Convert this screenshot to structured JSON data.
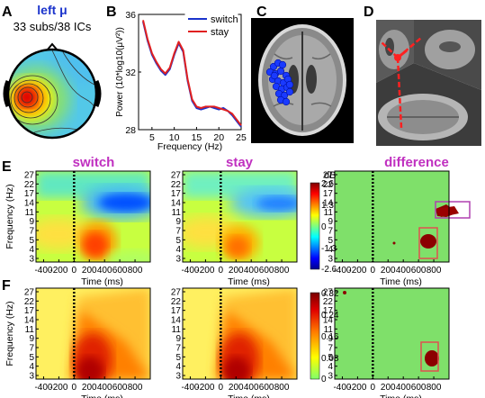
{
  "panels": {
    "A": {
      "letter": "A",
      "title": "left μ",
      "subtitle": "33 subs/38 ICs"
    },
    "B": {
      "letter": "B"
    },
    "C": {
      "letter": "C"
    },
    "D": {
      "letter": "D"
    },
    "E": {
      "letter": "E",
      "titles": [
        "switch",
        "stay",
        "difference"
      ],
      "cbar_unit": "dB",
      "cbar_ticks": [
        "2.6",
        "1.3",
        "0",
        "-1.3",
        "-2.6"
      ]
    },
    "F": {
      "letter": "F",
      "cbar_ticks": [
        "0.32",
        "0.24",
        "0.16",
        "0.08",
        "0"
      ]
    }
  },
  "tf_axes": {
    "ylabel": "Frequency (Hz)",
    "xlabel": "Time (ms)",
    "yticks": [
      "27",
      "22",
      "17",
      "14",
      "11",
      "9",
      "7",
      "5",
      "4",
      "3"
    ],
    "xticks": [
      "-400",
      "-200",
      "0",
      "200",
      "400",
      "600",
      "800"
    ]
  },
  "chart_data": {
    "type": "line",
    "title": "",
    "xlabel": "Frequency (Hz)",
    "ylabel": "Power (10*log10(μV²))",
    "xlim": [
      2,
      25
    ],
    "ylim": [
      28,
      36
    ],
    "xticks": [
      5,
      10,
      15,
      20,
      25
    ],
    "yticks": [
      28,
      32,
      36
    ],
    "legend_position": "top-right",
    "series": [
      {
        "name": "switch",
        "color": "#1a33cc",
        "x": [
          3,
          4,
          5,
          6,
          7,
          8,
          9,
          10,
          11,
          12,
          13,
          14,
          15,
          16,
          17,
          18,
          19,
          20,
          21,
          22,
          23,
          24,
          25
        ],
        "y": [
          35.5,
          34.2,
          33.2,
          32.6,
          32.1,
          31.8,
          32.2,
          33.2,
          34.0,
          33.4,
          31.4,
          30.0,
          29.5,
          29.4,
          29.5,
          29.6,
          29.5,
          29.4,
          29.5,
          29.3,
          29.0,
          28.6,
          28.2
        ]
      },
      {
        "name": "stay",
        "color": "#e02020",
        "x": [
          3,
          4,
          5,
          6,
          7,
          8,
          9,
          10,
          11,
          12,
          13,
          14,
          15,
          16,
          17,
          18,
          19,
          20,
          21,
          22,
          23,
          24,
          25
        ],
        "y": [
          35.6,
          34.3,
          33.3,
          32.7,
          32.2,
          31.9,
          32.3,
          33.3,
          34.1,
          33.5,
          31.5,
          30.1,
          29.6,
          29.5,
          29.6,
          29.6,
          29.6,
          29.5,
          29.4,
          29.3,
          29.1,
          28.7,
          28.3
        ]
      }
    ]
  }
}
